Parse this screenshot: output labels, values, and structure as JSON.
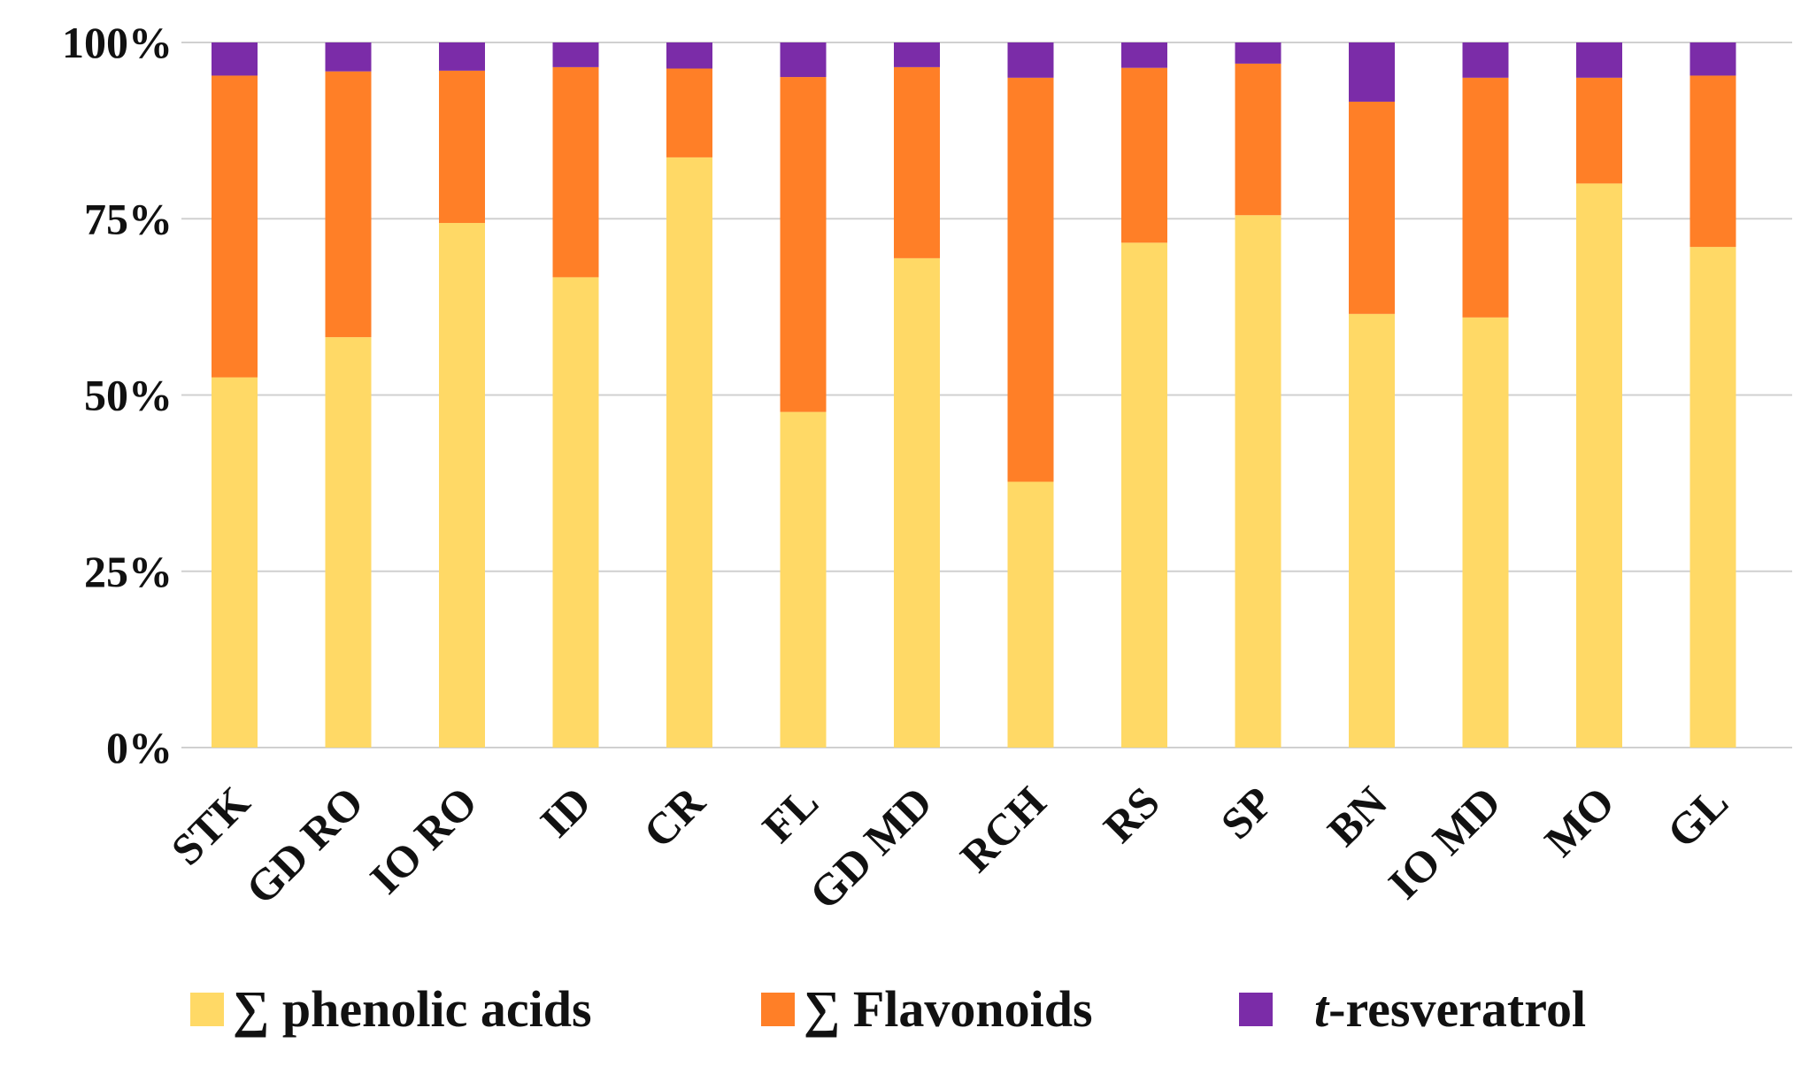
{
  "chart_data": {
    "type": "bar",
    "stacked": true,
    "normalized": true,
    "title": "",
    "xlabel": "",
    "ylabel": "",
    "ylim": [
      0,
      100
    ],
    "yticks": [
      0,
      25,
      50,
      75,
      100
    ],
    "ytick_labels": [
      "0%",
      "25%",
      "50%",
      "75%",
      "100%"
    ],
    "grid": true,
    "legend_position": "bottom",
    "categories": [
      "STK",
      "GD RO",
      "IO RO",
      "ID",
      "CR",
      "FL",
      "GD MD",
      "RCH",
      "RS",
      "SP",
      "BN",
      "IO MD",
      "MO",
      "GL"
    ],
    "series": [
      {
        "name": "∑ phenolic acids",
        "legend_prefix": "∑ ",
        "legend_text": "phenolic  acids",
        "color": "#FFD966",
        "values": [
          52.5,
          58.2,
          74.4,
          66.7,
          83.7,
          47.6,
          69.4,
          37.7,
          71.6,
          75.5,
          61.5,
          61.0,
          80.0,
          71.0
        ]
      },
      {
        "name": "∑ Flavonoids",
        "legend_prefix": "∑ ",
        "legend_text": "Flavonoids",
        "color": "#FF7F27",
        "values": [
          42.8,
          37.7,
          21.6,
          29.8,
          12.6,
          47.5,
          27.1,
          57.3,
          24.8,
          21.5,
          30.1,
          34.0,
          15.0,
          24.3
        ]
      },
      {
        "name": "t-resveratrol",
        "legend_prefix": "t",
        "legend_text": "-resveratrol",
        "color": "#7B2CA8",
        "values": [
          4.7,
          4.1,
          4.0,
          3.5,
          3.7,
          4.9,
          3.5,
          5.0,
          3.6,
          3.0,
          8.4,
          5.0,
          5.0,
          4.7
        ]
      }
    ]
  }
}
